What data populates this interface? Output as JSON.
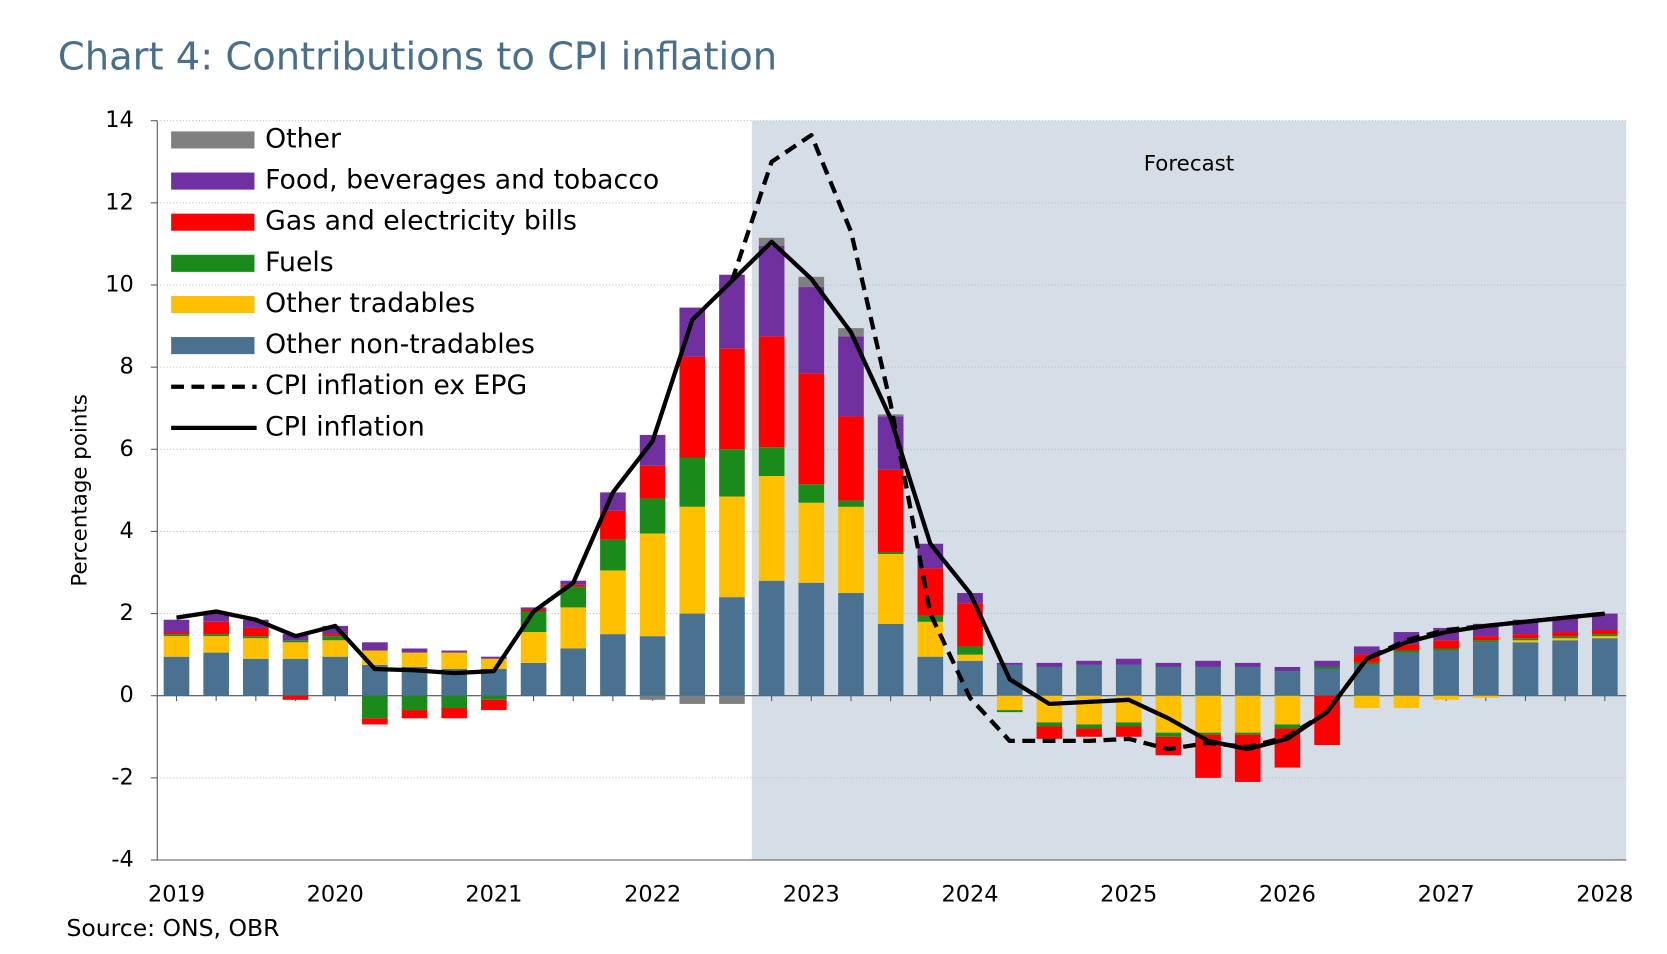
{
  "chart_data": {
    "type": "bar",
    "stacked": true,
    "title": "Chart 4: Contributions to CPI inflation",
    "y_label": "Percentage points",
    "source": "Source: ONS, OBR",
    "annotation": "Forecast",
    "shaded_from": 15,
    "categories": [
      "2019",
      null,
      null,
      null,
      "2020",
      null,
      null,
      null,
      "2021",
      null,
      null,
      null,
      "2022",
      null,
      null,
      null,
      "2023",
      null,
      null,
      null,
      "2024",
      null,
      null,
      null,
      "2025",
      null,
      null,
      null,
      "2026",
      null,
      null,
      null,
      "2027",
      null,
      null,
      null,
      "2028"
    ],
    "ylim": [
      -4,
      14
    ],
    "yticks": [
      -4,
      -2,
      0,
      2,
      4,
      6,
      8,
      10,
      12,
      14
    ],
    "grid": true,
    "legend": "top-left",
    "series": [
      {
        "name": "Other non-tradables",
        "type": "bar",
        "color": "#4a7190",
        "values": [
          0.95,
          1.05,
          0.9,
          0.9,
          0.95,
          0.75,
          0.7,
          0.65,
          0.65,
          0.8,
          1.15,
          1.5,
          1.45,
          2.0,
          2.4,
          2.8,
          2.75,
          2.5,
          1.75,
          0.95,
          0.85,
          0.75,
          0.7,
          0.75,
          0.75,
          0.7,
          0.7,
          0.7,
          0.6,
          0.65,
          0.75,
          1.05,
          1.1,
          1.3,
          1.3,
          1.35,
          1.4
        ]
      },
      {
        "name": "Other tradables",
        "type": "bar",
        "color": "#ffc000",
        "values": [
          0.5,
          0.4,
          0.5,
          0.4,
          0.4,
          0.35,
          0.35,
          0.4,
          0.25,
          0.75,
          1.0,
          1.55,
          2.5,
          2.6,
          2.45,
          2.55,
          1.95,
          2.1,
          1.7,
          0.85,
          0.15,
          -0.35,
          -0.65,
          -0.7,
          -0.65,
          -0.9,
          -0.9,
          -0.9,
          -0.7,
          0,
          -0.3,
          -0.3,
          -0.1,
          -0.05,
          0.05,
          0.05,
          0.05
        ]
      },
      {
        "name": "Fuels",
        "type": "bar",
        "color": "#1a8a1a",
        "values": [
          0.05,
          0.05,
          0.05,
          0.05,
          0.1,
          -0.55,
          -0.35,
          -0.3,
          -0.1,
          0.5,
          0.5,
          0.75,
          0.85,
          1.2,
          1.15,
          0.7,
          0.45,
          0.15,
          0.05,
          0.15,
          0.2,
          -0.05,
          -0.1,
          -0.1,
          -0.1,
          -0.1,
          -0.05,
          -0.05,
          -0.1,
          0.05,
          0.05,
          0.05,
          0.05,
          0.05,
          0.05,
          0.05,
          0.05
        ]
      },
      {
        "name": "Gas and electricity bills",
        "type": "bar",
        "color": "#ff0000",
        "values": [
          0.05,
          0.3,
          0.2,
          -0.1,
          0.05,
          -0.15,
          -0.2,
          -0.25,
          -0.25,
          0.05,
          0.05,
          0.7,
          0.8,
          2.45,
          2.45,
          2.7,
          2.7,
          2.05,
          2.0,
          1.15,
          1.05,
          0,
          -0.3,
          -0.2,
          -0.25,
          -0.45,
          -1.05,
          -1.15,
          -0.95,
          -1.2,
          0.2,
          0.15,
          0.2,
          0.1,
          0.1,
          0.1,
          0.1
        ]
      },
      {
        "name": "Food, beverages and tobacco",
        "type": "bar",
        "color": "#7030a0",
        "values": [
          0.3,
          0.2,
          0.2,
          0.15,
          0.2,
          0.2,
          0.1,
          0.05,
          0.05,
          0.05,
          0.1,
          0.45,
          0.75,
          1.2,
          1.8,
          2.2,
          2.1,
          1.95,
          1.3,
          0.6,
          0.25,
          0.05,
          0.1,
          0.1,
          0.15,
          0.1,
          0.15,
          0.1,
          0.1,
          0.15,
          0.2,
          0.3,
          0.3,
          0.3,
          0.35,
          0.35,
          0.4
        ]
      },
      {
        "name": "Other",
        "type": "bar",
        "color": "#808080",
        "values": [
          0,
          0,
          0,
          0,
          0,
          0,
          0,
          0,
          0,
          0,
          0,
          0,
          -0.1,
          -0.2,
          -0.2,
          0.2,
          0.25,
          0.2,
          0.05,
          0,
          0,
          0,
          0,
          0,
          0,
          0,
          0,
          0,
          0,
          0,
          0,
          0,
          0,
          0,
          0,
          0,
          0
        ]
      },
      {
        "name": "CPI inflation ex EPG",
        "type": "line",
        "dashed": true,
        "color": "#000000",
        "values": [
          null,
          null,
          null,
          null,
          null,
          null,
          null,
          null,
          null,
          null,
          null,
          null,
          null,
          null,
          10.1,
          13.0,
          13.65,
          11.3,
          7.1,
          2.0,
          -0.05,
          -1.1,
          -1.1,
          -1.1,
          -1.05,
          -1.3,
          -1.15,
          -1.25,
          -1.0,
          -0.4,
          0.9,
          1.35,
          1.6,
          1.7,
          1.8,
          1.9,
          2.0
        ]
      },
      {
        "name": "CPI inflation",
        "type": "line",
        "dashed": false,
        "color": "#000000",
        "values": [
          1.9,
          2.05,
          1.85,
          1.45,
          1.7,
          0.65,
          0.62,
          0.55,
          0.6,
          2.05,
          2.75,
          4.95,
          6.2,
          9.15,
          10.1,
          11.05,
          10.15,
          8.85,
          6.75,
          3.7,
          2.5,
          0.4,
          -0.2,
          -0.15,
          -0.1,
          -0.55,
          -1.1,
          -1.3,
          -1.05,
          -0.4,
          0.9,
          1.3,
          1.55,
          1.7,
          1.8,
          1.9,
          2.0
        ]
      }
    ]
  }
}
